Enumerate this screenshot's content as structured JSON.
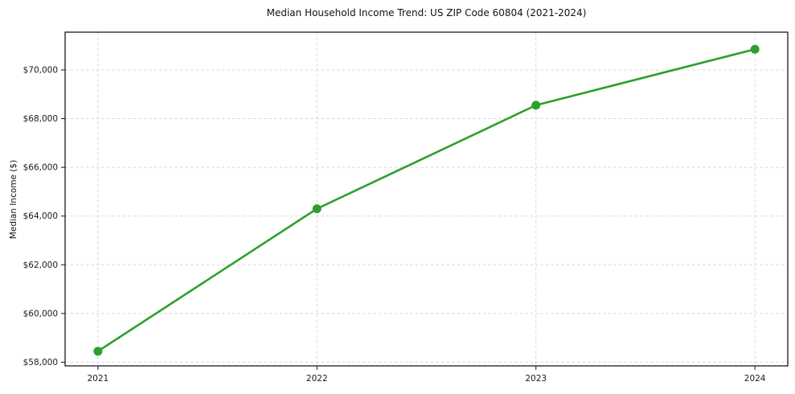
{
  "chart_data": {
    "type": "line",
    "title": "Median Household Income Trend: US ZIP Code 60804 (2021-2024)",
    "xlabel": "",
    "ylabel": "Median Income ($)",
    "x": [
      2021,
      2022,
      2023,
      2024
    ],
    "series": [
      {
        "name": "Median Household Income",
        "values": [
          58450,
          64300,
          68550,
          70850
        ]
      }
    ],
    "xtick_labels": [
      "2021",
      "2022",
      "2023",
      "2024"
    ],
    "yticks": [
      58000,
      60000,
      62000,
      64000,
      66000,
      68000,
      70000
    ],
    "ytick_labels": [
      "$58,000",
      "$60,000",
      "$62,000",
      "$64,000",
      "$66,000",
      "$68,000",
      "$70,000"
    ],
    "xlim": [
      2020.85,
      2024.15
    ],
    "ylim": [
      57850,
      71550
    ],
    "grid": true,
    "grid_style": "dashed",
    "legend_position": "none",
    "line_color": "#2ca02c",
    "marker": "o",
    "marker_size": 5.5,
    "background_color": "#ffffff",
    "grid_color": "#d9d9d9",
    "text_color": "#1a1a1a"
  }
}
